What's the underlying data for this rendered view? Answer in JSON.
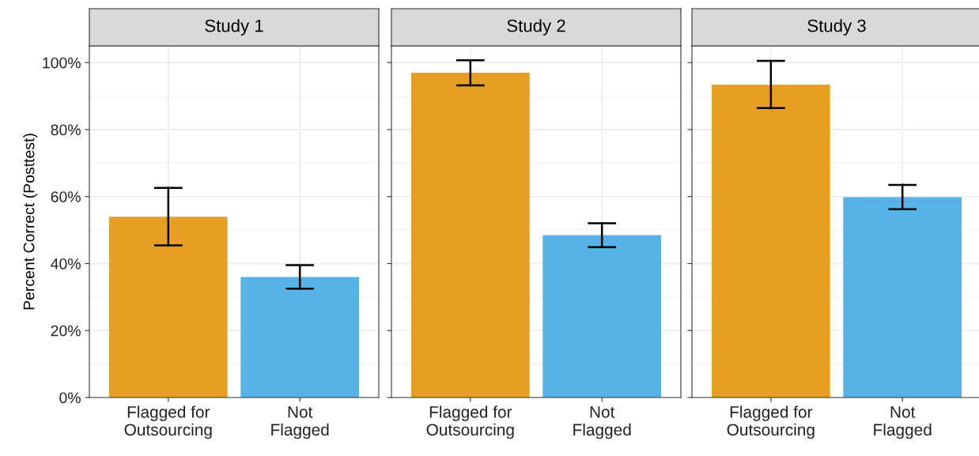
{
  "chart_data": [
    {
      "type": "bar",
      "title": "Study 1",
      "ylabel": "Percent Correct (Posttest)",
      "categories": [
        "Flagged for\nOutsourcing",
        "Not\nFlagged"
      ],
      "values": [
        54,
        36
      ],
      "colors": [
        "#e69f22",
        "#57b2e6"
      ],
      "errors": [
        [
          45.4,
          62.6
        ],
        [
          32.5,
          39.5
        ]
      ],
      "ylim": [
        0,
        105
      ],
      "yticks": [
        {
          "value": 0,
          "label": "0%"
        },
        {
          "value": 20,
          "label": "20%"
        },
        {
          "value": 40,
          "label": "40%"
        },
        {
          "value": 60,
          "label": "60%"
        },
        {
          "value": 80,
          "label": "80%"
        },
        {
          "value": 100,
          "label": "100%"
        }
      ],
      "grid": true
    },
    {
      "type": "bar",
      "title": "Study 2",
      "categories": [
        "Flagged for\nOutsourcing",
        "Not\nFlagged"
      ],
      "values": [
        97,
        48.5
      ],
      "colors": [
        "#e69f22",
        "#57b2e6"
      ],
      "errors": [
        [
          93.2,
          100.7
        ],
        [
          44.9,
          52
        ]
      ],
      "ylim": [
        0,
        105
      ],
      "yticks": [
        {
          "value": 0,
          "label": null
        },
        {
          "value": 20,
          "label": null
        },
        {
          "value": 40,
          "label": null
        },
        {
          "value": 60,
          "label": null
        },
        {
          "value": 80,
          "label": null
        },
        {
          "value": 100,
          "label": null
        }
      ],
      "grid": true,
      "tick_labels": "x"
    },
    {
      "type": "bar",
      "title": "Study 3",
      "categories": [
        "Flagged for\nOutsourcing",
        "Not\nFlagged"
      ],
      "values": [
        93.4,
        59.8
      ],
      "colors": [
        "#e69f22",
        "#57b2e6"
      ],
      "errors": [
        [
          86.4,
          100.5
        ],
        [
          56.2,
          63.5
        ]
      ],
      "ylim": [
        0,
        105
      ],
      "yticks": [
        {
          "value": 0,
          "label": null
        },
        {
          "value": 20,
          "label": null
        },
        {
          "value": 40,
          "label": null
        },
        {
          "value": 60,
          "label": null
        },
        {
          "value": 80,
          "label": null
        },
        {
          "value": 100,
          "label": null
        }
      ],
      "grid": true,
      "tick_labels": "x"
    }
  ]
}
